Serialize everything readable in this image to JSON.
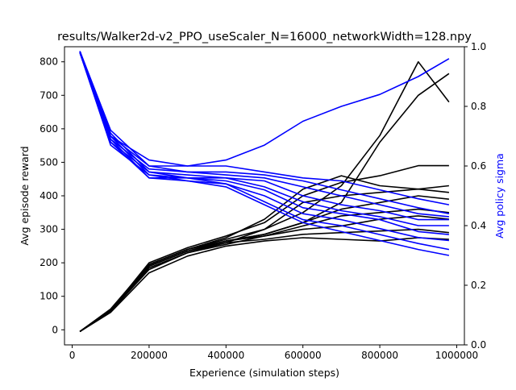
{
  "chart_data": {
    "type": "line",
    "title": "results/Walker2d-v2_PPO_useScaler_N=16000_networkWidth=128.npy",
    "xlabel": "Experience (simulation steps)",
    "ylabel": "Avg episode reward",
    "y2label": "Avg policy sigma",
    "xlim": [
      -20000,
      1020000
    ],
    "ylim": [
      -45,
      845
    ],
    "y2lim": [
      0.0,
      1.0
    ],
    "x_ticks": [
      0,
      200000,
      400000,
      600000,
      800000,
      1000000
    ],
    "x_tick_labels": [
      "0",
      "200000",
      "400000",
      "600000",
      "800000",
      "1000000"
    ],
    "y_ticks": [
      0,
      100,
      200,
      300,
      400,
      500,
      600,
      700,
      800
    ],
    "y_tick_labels": [
      "0",
      "100",
      "200",
      "300",
      "400",
      "500",
      "600",
      "700",
      "800"
    ],
    "y2_ticks": [
      0.0,
      0.2,
      0.4,
      0.6,
      0.8,
      1.0
    ],
    "y2_tick_labels": [
      "0.0",
      "0.2",
      "0.4",
      "0.6",
      "0.8",
      "1.0"
    ],
    "grid": false,
    "colors": {
      "reward": "#000000",
      "sigma": "#0000ff",
      "sigma_axis_label": "#0000ff"
    },
    "x": [
      20000,
      100000,
      200000,
      300000,
      400000,
      500000,
      600000,
      700000,
      800000,
      900000,
      980000
    ],
    "reward_series": [
      [
        -5,
        60,
        195,
        240,
        270,
        300,
        350,
        430,
        580,
        800,
        680
      ],
      [
        -5,
        55,
        190,
        235,
        265,
        285,
        320,
        380,
        560,
        700,
        765
      ],
      [
        -5,
        58,
        200,
        245,
        280,
        320,
        400,
        440,
        460,
        490,
        490
      ],
      [
        -5,
        62,
        195,
        240,
        275,
        330,
        420,
        460,
        430,
        420,
        430
      ],
      [
        -5,
        57,
        185,
        230,
        260,
        300,
        380,
        400,
        410,
        420,
        410
      ],
      [
        -5,
        60,
        190,
        235,
        265,
        285,
        320,
        360,
        380,
        400,
        390
      ],
      [
        -5,
        55,
        180,
        230,
        255,
        280,
        310,
        340,
        350,
        360,
        350
      ],
      [
        -5,
        58,
        195,
        240,
        265,
        280,
        300,
        310,
        330,
        340,
        330
      ],
      [
        -5,
        60,
        190,
        235,
        260,
        270,
        285,
        290,
        295,
        300,
        290
      ],
      [
        -5,
        52,
        170,
        220,
        250,
        265,
        275,
        270,
        265,
        275,
        270
      ]
    ],
    "sigma_series": [
      [
        0.985,
        0.72,
        0.6,
        0.6,
        0.62,
        0.67,
        0.75,
        0.8,
        0.84,
        0.9,
        0.96
      ],
      [
        0.98,
        0.7,
        0.62,
        0.6,
        0.6,
        0.58,
        0.56,
        0.55,
        0.52,
        0.49,
        0.47
      ],
      [
        0.985,
        0.7,
        0.6,
        0.58,
        0.58,
        0.57,
        0.55,
        0.52,
        0.49,
        0.46,
        0.44
      ],
      [
        0.98,
        0.69,
        0.59,
        0.58,
        0.57,
        0.56,
        0.53,
        0.5,
        0.47,
        0.44,
        0.43
      ],
      [
        0.985,
        0.71,
        0.58,
        0.57,
        0.56,
        0.55,
        0.5,
        0.47,
        0.45,
        0.42,
        0.42
      ],
      [
        0.98,
        0.68,
        0.58,
        0.56,
        0.56,
        0.53,
        0.48,
        0.45,
        0.43,
        0.4,
        0.4
      ],
      [
        0.985,
        0.7,
        0.57,
        0.56,
        0.55,
        0.52,
        0.46,
        0.44,
        0.42,
        0.38,
        0.37
      ],
      [
        0.98,
        0.69,
        0.56,
        0.55,
        0.54,
        0.5,
        0.44,
        0.42,
        0.39,
        0.36,
        0.35
      ],
      [
        0.985,
        0.68,
        0.56,
        0.56,
        0.54,
        0.48,
        0.42,
        0.4,
        0.37,
        0.34,
        0.32
      ],
      [
        0.98,
        0.67,
        0.57,
        0.55,
        0.53,
        0.47,
        0.41,
        0.38,
        0.35,
        0.32,
        0.3
      ]
    ]
  }
}
